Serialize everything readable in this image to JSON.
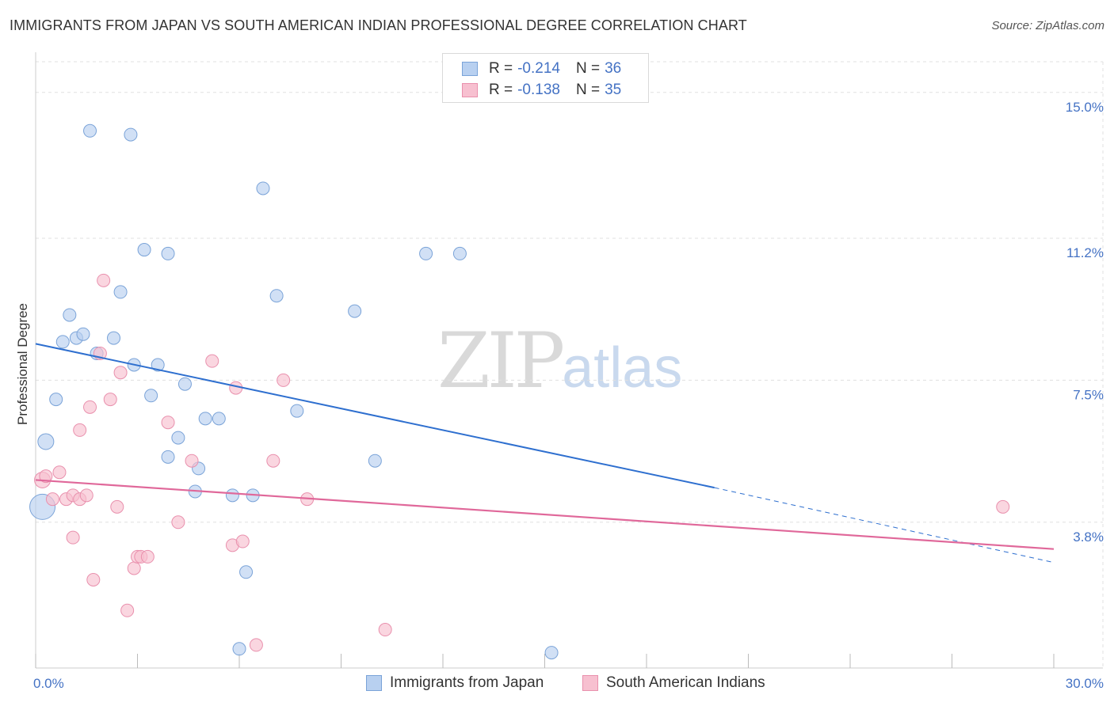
{
  "title": "IMMIGRANTS FROM JAPAN VS SOUTH AMERICAN INDIAN PROFESSIONAL DEGREE CORRELATION CHART",
  "source": "Source: ZipAtlas.com",
  "watermark": {
    "zip": "ZIP",
    "atlas": "atlas"
  },
  "legend_top": [
    {
      "r_label": "R =",
      "r_value": "-0.214",
      "n_label": "N =",
      "n_value": "36"
    },
    {
      "r_label": "R =",
      "r_value": "-0.138",
      "n_label": "N =",
      "n_value": "35"
    }
  ],
  "colors": {
    "blue_fill": "#b8d0f0",
    "blue_stroke": "#7aa3d8",
    "blue_line": "#2e6fcf",
    "pink_fill": "#f7c0d0",
    "pink_stroke": "#e990ad",
    "pink_line": "#e0689a",
    "grid": "#e0e0e0",
    "tick_text": "#4472c4"
  },
  "chart_data": {
    "type": "scatter",
    "title": "IMMIGRANTS FROM JAPAN VS SOUTH AMERICAN INDIAN PROFESSIONAL DEGREE CORRELATION CHART",
    "xlabel": "",
    "ylabel": "Professional Degree",
    "xlim": [
      0,
      30
    ],
    "ylim": [
      0,
      15.8
    ],
    "y_ticks": [
      {
        "value": 3.8,
        "label": "3.8%"
      },
      {
        "value": 7.5,
        "label": "7.5%"
      },
      {
        "value": 11.2,
        "label": "11.2%"
      },
      {
        "value": 15.0,
        "label": "15.0%"
      }
    ],
    "x_tick_labels": [
      {
        "value": 0,
        "label": "0.0%"
      },
      {
        "value": 30,
        "label": "30.0%"
      }
    ],
    "x_minor_ticks": [
      0,
      3,
      6,
      9,
      12,
      15,
      18,
      21,
      24,
      27,
      30
    ],
    "grid": true,
    "legend_position": "top-center",
    "series": [
      {
        "name": "Immigrants from Japan",
        "color": "#b8d0f0",
        "points": [
          [
            0.2,
            4.2,
            32
          ],
          [
            0.3,
            5.9,
            20
          ],
          [
            0.6,
            7.0,
            16
          ],
          [
            1.0,
            9.2,
            16
          ],
          [
            0.8,
            8.5,
            16
          ],
          [
            1.2,
            8.6,
            16
          ],
          [
            1.4,
            8.7,
            16
          ],
          [
            1.6,
            14.0,
            16
          ],
          [
            1.8,
            8.2,
            16
          ],
          [
            2.3,
            8.6,
            16
          ],
          [
            2.5,
            9.8,
            16
          ],
          [
            2.8,
            13.9,
            16
          ],
          [
            2.9,
            7.9,
            16
          ],
          [
            3.2,
            10.9,
            16
          ],
          [
            3.4,
            7.1,
            16
          ],
          [
            3.6,
            7.9,
            16
          ],
          [
            3.9,
            10.8,
            16
          ],
          [
            3.9,
            5.5,
            16
          ],
          [
            4.2,
            6.0,
            16
          ],
          [
            4.4,
            7.4,
            16
          ],
          [
            4.7,
            4.6,
            16
          ],
          [
            4.8,
            5.2,
            16
          ],
          [
            5.0,
            6.5,
            16
          ],
          [
            5.4,
            6.5,
            16
          ],
          [
            5.8,
            4.5,
            16
          ],
          [
            6.0,
            0.5,
            16
          ],
          [
            6.2,
            2.5,
            16
          ],
          [
            6.4,
            4.5,
            16
          ],
          [
            6.7,
            12.5,
            16
          ],
          [
            7.1,
            9.7,
            16
          ],
          [
            7.7,
            6.7,
            16
          ],
          [
            9.4,
            9.3,
            16
          ],
          [
            10.0,
            5.4,
            16
          ],
          [
            11.5,
            10.8,
            16
          ],
          [
            12.5,
            10.8,
            16
          ],
          [
            15.2,
            0.4,
            16
          ]
        ]
      },
      {
        "name": "South American Indians",
        "color": "#f7c0d0",
        "points": [
          [
            0.2,
            4.9,
            20
          ],
          [
            0.3,
            5.0,
            16
          ],
          [
            0.5,
            4.4,
            16
          ],
          [
            0.7,
            5.1,
            16
          ],
          [
            0.9,
            4.4,
            16
          ],
          [
            1.1,
            4.5,
            16
          ],
          [
            1.3,
            4.4,
            16
          ],
          [
            1.1,
            3.4,
            16
          ],
          [
            1.3,
            6.2,
            16
          ],
          [
            1.5,
            4.5,
            16
          ],
          [
            1.6,
            6.8,
            16
          ],
          [
            1.7,
            2.3,
            16
          ],
          [
            1.9,
            8.2,
            16
          ],
          [
            2.0,
            10.1,
            16
          ],
          [
            2.2,
            7.0,
            16
          ],
          [
            2.4,
            4.2,
            16
          ],
          [
            2.5,
            7.7,
            16
          ],
          [
            2.7,
            1.5,
            16
          ],
          [
            2.9,
            2.6,
            16
          ],
          [
            3.0,
            2.9,
            16
          ],
          [
            3.1,
            2.9,
            16
          ],
          [
            3.3,
            2.9,
            16
          ],
          [
            3.9,
            6.4,
            16
          ],
          [
            4.2,
            3.8,
            16
          ],
          [
            4.6,
            5.4,
            16
          ],
          [
            5.2,
            8.0,
            16
          ],
          [
            5.8,
            3.2,
            16
          ],
          [
            5.9,
            7.3,
            16
          ],
          [
            6.1,
            3.3,
            16
          ],
          [
            6.5,
            0.6,
            16
          ],
          [
            7.0,
            5.4,
            16
          ],
          [
            7.3,
            7.5,
            16
          ],
          [
            8.0,
            4.4,
            16
          ],
          [
            10.3,
            1.0,
            16
          ],
          [
            28.5,
            4.2,
            16
          ]
        ]
      }
    ],
    "trend_lines": [
      {
        "series": "Immigrants from Japan",
        "x_start": 0,
        "y_start": 8.45,
        "x_end": 20.0,
        "y_end": 4.7,
        "dash_to_x": 30.0,
        "dash_to_y": 2.75
      },
      {
        "series": "South American Indians",
        "x_start": 0,
        "y_start": 4.9,
        "x_end": 30.0,
        "y_end": 3.1
      }
    ]
  }
}
